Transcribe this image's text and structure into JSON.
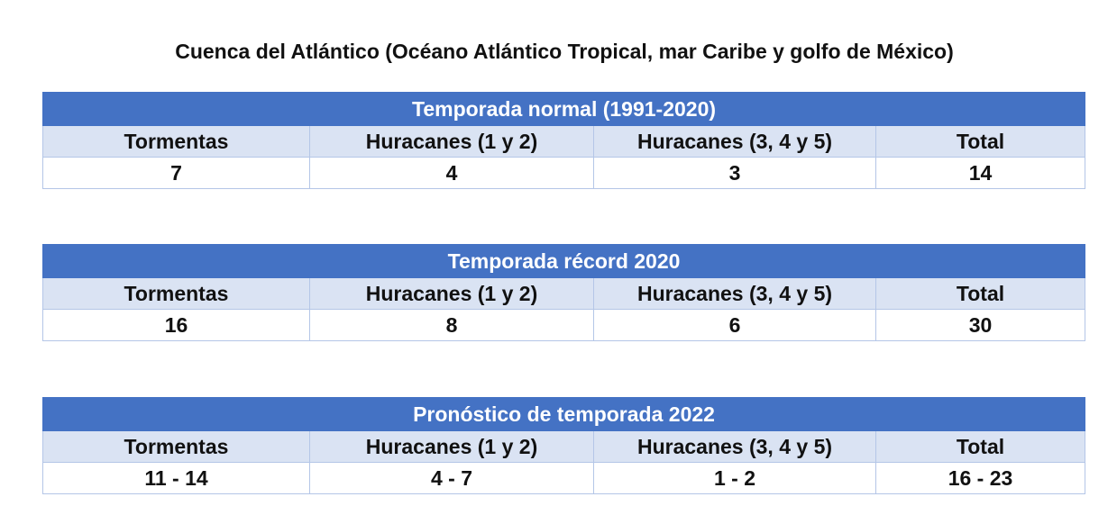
{
  "title": "Cuenca del Atlántico (Océano Atlántico Tropical, mar Caribe y golfo de México)",
  "columns": [
    "Tormentas",
    "Huracanes (1 y 2)",
    "Huracanes (3, 4 y 5)",
    "Total"
  ],
  "tables": [
    {
      "heading": "Temporada normal (1991-2020)",
      "values": [
        "7",
        "4",
        "3",
        "14"
      ]
    },
    {
      "heading": "Temporada récord 2020",
      "values": [
        "16",
        "8",
        "6",
        "30"
      ]
    },
    {
      "heading": "Pronóstico de temporada 2022",
      "values": [
        "11 - 14",
        "4 - 7",
        "1 - 2",
        "16 - 23"
      ]
    }
  ],
  "colors": {
    "band": "#4472c4",
    "header_row": "#dae3f3",
    "border": "#b4c6e7"
  }
}
